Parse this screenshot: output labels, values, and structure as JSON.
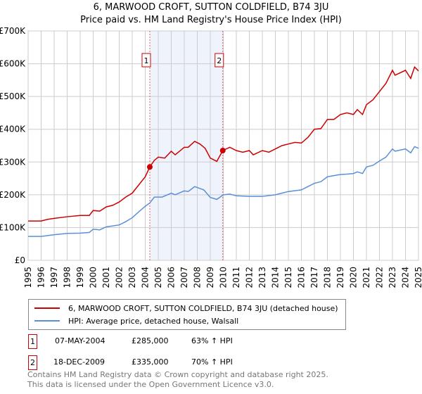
{
  "chart_data": {
    "type": "line",
    "title": "6, MARWOOD CROFT, SUTTON COLDFIELD, B74 3JU",
    "subtitle": "Price paid vs. HM Land Registry's House Price Index (HPI)",
    "ylim": [
      0,
      700000
    ],
    "xlim": [
      1995,
      2025
    ],
    "y_ticks": [
      {
        "v": 0,
        "label": "£0"
      },
      {
        "v": 100000,
        "label": "£100K"
      },
      {
        "v": 200000,
        "label": "£200K"
      },
      {
        "v": 300000,
        "label": "£300K"
      },
      {
        "v": 400000,
        "label": "£400K"
      },
      {
        "v": 500000,
        "label": "£500K"
      },
      {
        "v": 600000,
        "label": "£600K"
      },
      {
        "v": 700000,
        "label": "£700K"
      }
    ],
    "x_ticks": [
      "1995",
      "1996",
      "1997",
      "1998",
      "1999",
      "2000",
      "2001",
      "2002",
      "2003",
      "2004",
      "2005",
      "2006",
      "2007",
      "2008",
      "2009",
      "2010",
      "2011",
      "2012",
      "2013",
      "2014",
      "2015",
      "2016",
      "2017",
      "2018",
      "2019",
      "2020",
      "2021",
      "2022",
      "2023",
      "2024",
      "2025"
    ],
    "grid": true,
    "shaded_range": [
      2004.35,
      2009.96
    ],
    "series": [
      {
        "name": "6, MARWOOD CROFT, SUTTON COLDFIELD, B74 3JU (detached house)",
        "color": "#cc0000",
        "x": [
          1995,
          1996,
          1996.5,
          1997,
          1998,
          1999,
          1999.7,
          2000,
          2000.5,
          2001,
          2001.5,
          2002,
          2002.5,
          2003,
          2003.5,
          2004,
          2004.35,
          2004.7,
          2005,
          2005.5,
          2006,
          2006.3,
          2007,
          2007.3,
          2007.8,
          2008.2,
          2008.6,
          2009,
          2009.5,
          2009.96,
          2010.5,
          2011,
          2011.5,
          2012,
          2012.3,
          2013,
          2013.5,
          2014,
          2014.5,
          2015,
          2015.5,
          2016,
          2016.5,
          2017,
          2017.5,
          2018,
          2018.5,
          2019,
          2019.5,
          2020,
          2020.3,
          2020.7,
          2021,
          2021.5,
          2022,
          2022.5,
          2023,
          2023.2,
          2024,
          2024.4,
          2024.7,
          2025
        ],
        "y": [
          120000,
          120000,
          125000,
          128000,
          133000,
          137000,
          137000,
          152000,
          150000,
          163000,
          168000,
          178000,
          193000,
          205000,
          230000,
          255000,
          285000,
          305000,
          315000,
          312000,
          333000,
          322000,
          345000,
          345000,
          363000,
          355000,
          342000,
          312000,
          302000,
          335000,
          345000,
          335000,
          330000,
          335000,
          322000,
          335000,
          330000,
          340000,
          350000,
          355000,
          360000,
          358000,
          375000,
          400000,
          402000,
          430000,
          430000,
          445000,
          450000,
          445000,
          460000,
          445000,
          475000,
          490000,
          515000,
          540000,
          580000,
          565000,
          580000,
          555000,
          590000,
          578000
        ]
      },
      {
        "name": "HPI: Average price, detached house, Walsall",
        "color": "#5b8fd6",
        "x": [
          1995,
          1996,
          1997,
          1998,
          1999,
          1999.7,
          2000,
          2000.5,
          2001,
          2002,
          2002.5,
          2003,
          2003.5,
          2004,
          2004.35,
          2004.7,
          2005.3,
          2006,
          2006.3,
          2007,
          2007.3,
          2007.8,
          2008.5,
          2009,
          2009.5,
          2010,
          2010.5,
          2011,
          2012,
          2013,
          2014,
          2014.5,
          2015,
          2016,
          2016.5,
          2017,
          2017.5,
          2018,
          2019,
          2019.5,
          2020,
          2020.3,
          2020.7,
          2021,
          2021.5,
          2022,
          2022.5,
          2023,
          2023.2,
          2024,
          2024.4,
          2024.7,
          2025
        ],
        "y": [
          73000,
          73000,
          78000,
          82000,
          83000,
          85000,
          95000,
          93000,
          102000,
          108000,
          118000,
          130000,
          148000,
          165000,
          175000,
          193000,
          193000,
          205000,
          200000,
          212000,
          210000,
          225000,
          215000,
          192000,
          186000,
          200000,
          202000,
          197000,
          195000,
          195000,
          200000,
          205000,
          210000,
          215000,
          225000,
          235000,
          240000,
          255000,
          262000,
          263000,
          265000,
          270000,
          265000,
          285000,
          290000,
          303000,
          315000,
          340000,
          333000,
          340000,
          328000,
          347000,
          342000
        ]
      }
    ],
    "annotations": [
      {
        "label": "1",
        "x": 2004.35,
        "y": 285000
      },
      {
        "label": "2",
        "x": 2009.96,
        "y": 335000
      }
    ]
  },
  "legend": {
    "red": "6, MARWOOD CROFT, SUTTON COLDFIELD, B74 3JU (detached house)",
    "blue": "HPI: Average price, detached house, Walsall"
  },
  "transactions": [
    {
      "num": "1",
      "date": "07-MAY-2004",
      "price": "£285,000",
      "hpi": "63% ↑ HPI"
    },
    {
      "num": "2",
      "date": "18-DEC-2009",
      "price": "£335,000",
      "hpi": "70% ↑ HPI"
    }
  ],
  "footer": {
    "line1": "Contains HM Land Registry data © Crown copyright and database right 2025.",
    "line2": "This data is licensed under the Open Government Licence v3.0."
  }
}
